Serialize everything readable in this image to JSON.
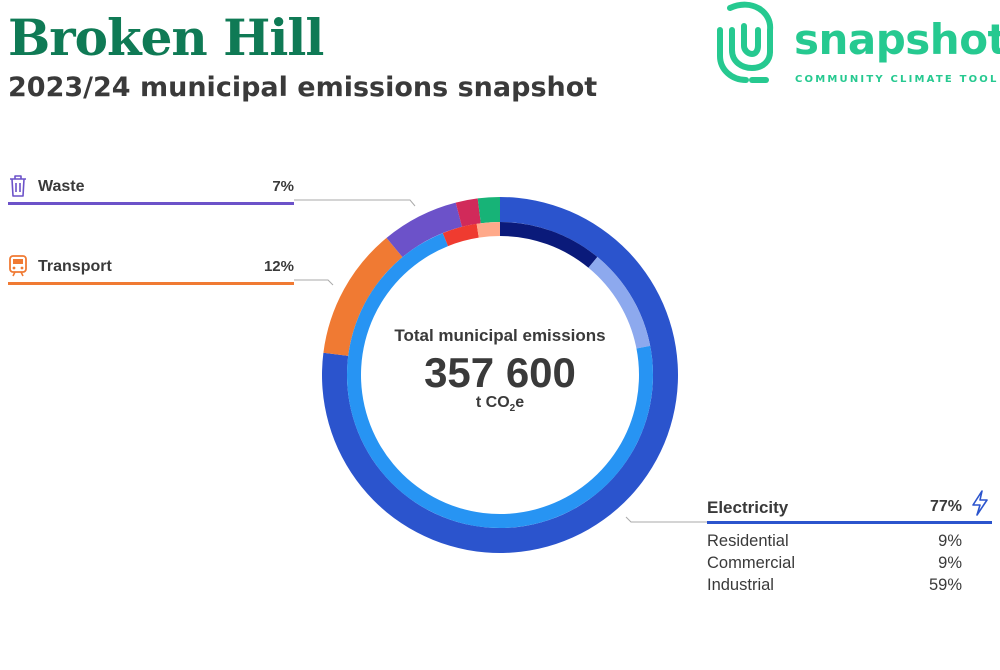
{
  "header": {
    "title": "Broken Hill",
    "subtitle": "2023/24 municipal emissions snapshot"
  },
  "logo": {
    "wordmark": "snapshot",
    "tagline": "COMMUNITY CLIMATE TOOL",
    "color": "#26c990"
  },
  "center": {
    "label": "Total municipal emissions",
    "value": "357 600",
    "unit_prefix": "t CO",
    "unit_sub": "2",
    "unit_suffix": "e"
  },
  "legend": {
    "waste": {
      "label": "Waste",
      "percent": "7%",
      "color": "#6c52c9",
      "icon": "trash-bin-icon"
    },
    "transport": {
      "label": "Transport",
      "percent": "12%",
      "color": "#f07a33",
      "icon": "train-icon"
    },
    "electricity": {
      "label": "Electricity",
      "percent": "77%",
      "color": "#2b54cd",
      "icon": "lightning-icon",
      "subs": [
        {
          "label": "Residential",
          "percent": "9%"
        },
        {
          "label": "Commercial",
          "percent": "9%"
        },
        {
          "label": "Industrial",
          "percent": "59%"
        }
      ]
    }
  },
  "chart_data": {
    "type": "pie",
    "style": "donut",
    "series": [
      {
        "name": "Electricity",
        "value": 77,
        "color": "#2b54cd"
      },
      {
        "name": "Transport",
        "value": 12,
        "color": "#f07a33"
      },
      {
        "name": "Waste",
        "value": 7,
        "color": "#6c52c9"
      },
      {
        "value": 2,
        "color": "#d12a5a"
      },
      {
        "value": 2,
        "color": "#17b377"
      }
    ],
    "inner_ring": [
      {
        "name": "Residential",
        "value": 9,
        "color": "#0a1a7a"
      },
      {
        "name": "Commercial",
        "value": 9,
        "color": "#8da9ee"
      },
      {
        "name": "Industrial",
        "value": 59,
        "color": "#2794f3"
      },
      {
        "value": 3,
        "color": "#ef3b30"
      },
      {
        "value": 2,
        "color": "#ffa98a"
      }
    ]
  }
}
